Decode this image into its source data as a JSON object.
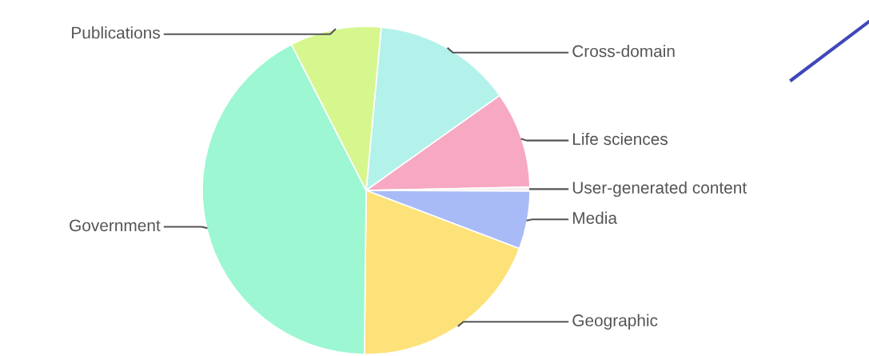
{
  "chart_data": {
    "type": "pie",
    "categories": [
      "Cross-domain",
      "Life sciences",
      "User-generated content",
      "Media",
      "Geographic",
      "Government",
      "Publications"
    ],
    "values": [
      13.7,
      9.5,
      0.4,
      5.7,
      19.4,
      42.3,
      9.0
    ],
    "colors": [
      "#b3f2ea",
      "#f7a8c2",
      "#f6eef0",
      "#a9bbf7",
      "#fde27a",
      "#9cf7d2",
      "#d6f78e"
    ]
  }
}
